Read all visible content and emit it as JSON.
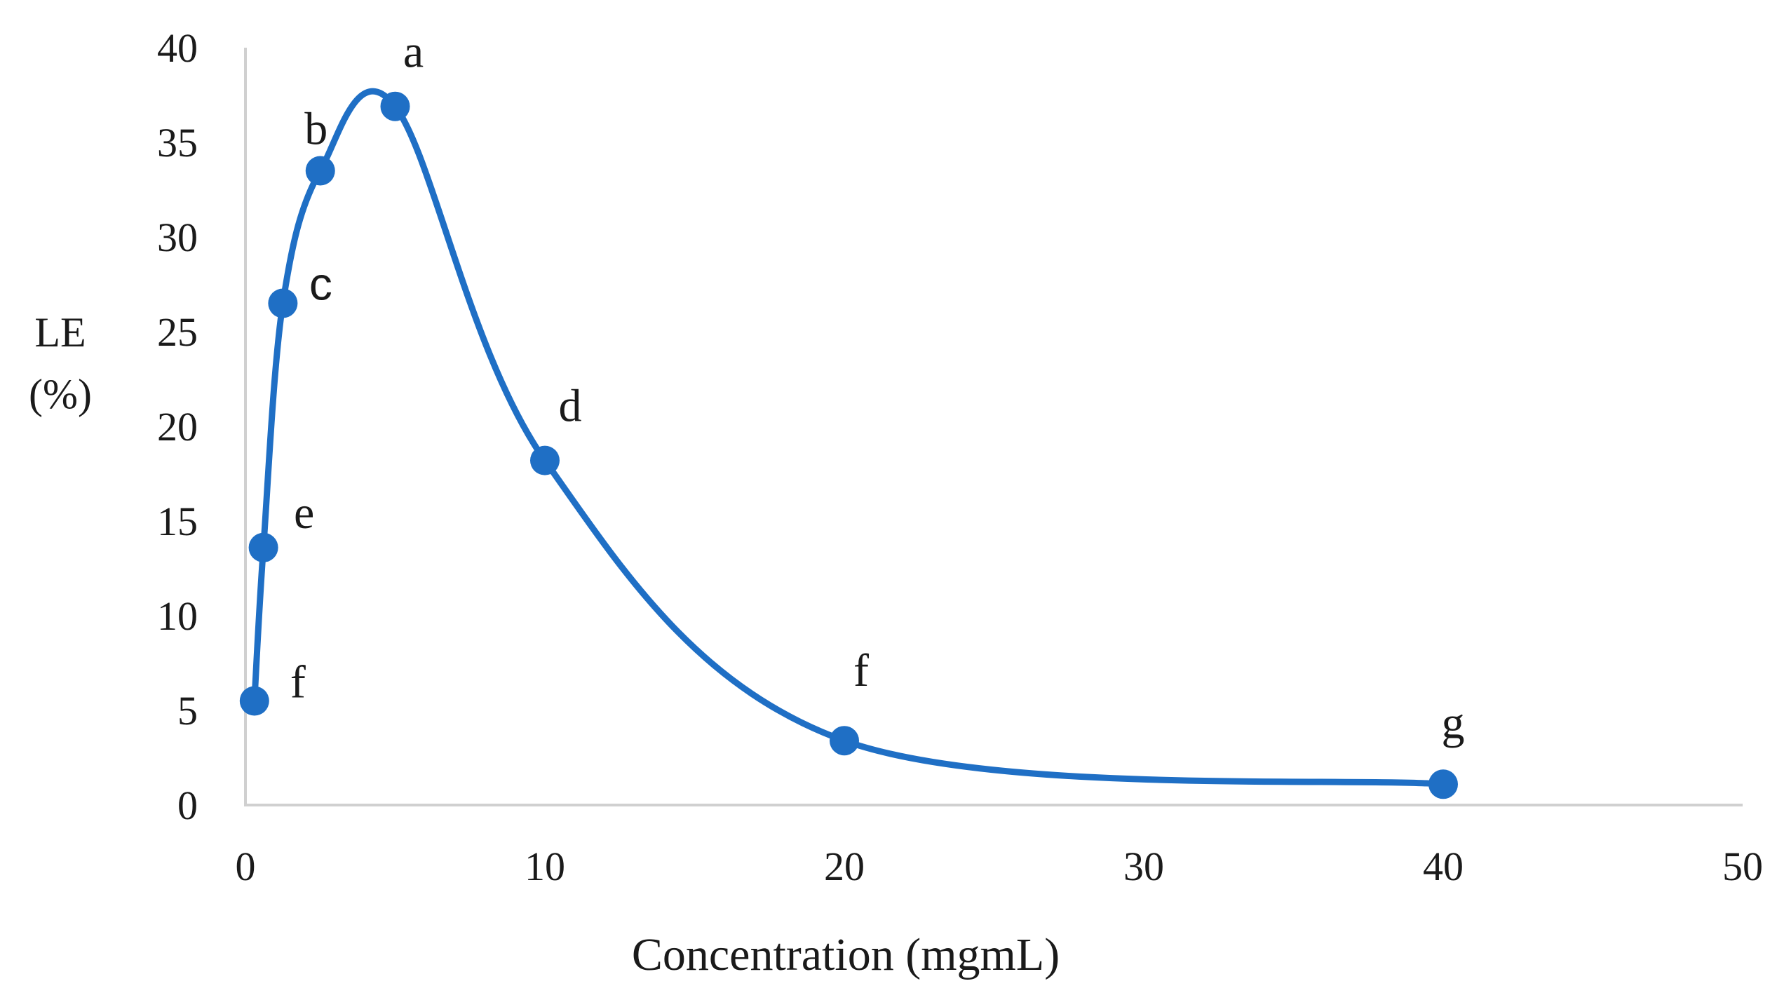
{
  "chart_data": {
    "type": "scatter",
    "title": "",
    "xlabel": "Concentration (mgmL)",
    "ylabel_line1": "LE",
    "ylabel_line2": "(%)",
    "xlim": [
      0,
      50
    ],
    "ylim": [
      0,
      40
    ],
    "x_ticks": [
      "0",
      "10",
      "20",
      "30",
      "40",
      "50"
    ],
    "y_ticks": [
      "0",
      "5",
      "10",
      "15",
      "20",
      "25",
      "30",
      "35",
      "40"
    ],
    "grid": false,
    "legend": "none",
    "color": "#1f6fc5",
    "series": [
      {
        "name": "LE",
        "smooth_line": true,
        "points": [
          {
            "x": 0.3,
            "y": 5.5,
            "label": "f"
          },
          {
            "x": 0.6,
            "y": 13.6,
            "label": "e"
          },
          {
            "x": 1.25,
            "y": 26.5,
            "label": "c"
          },
          {
            "x": 2.5,
            "y": 33.5,
            "label": "b"
          },
          {
            "x": 5,
            "y": 36.9,
            "label": "a"
          },
          {
            "x": 10,
            "y": 18.2,
            "label": "d"
          },
          {
            "x": 20,
            "y": 3.4,
            "label": "f"
          },
          {
            "x": 40,
            "y": 1.1,
            "label": "g"
          }
        ]
      }
    ]
  }
}
